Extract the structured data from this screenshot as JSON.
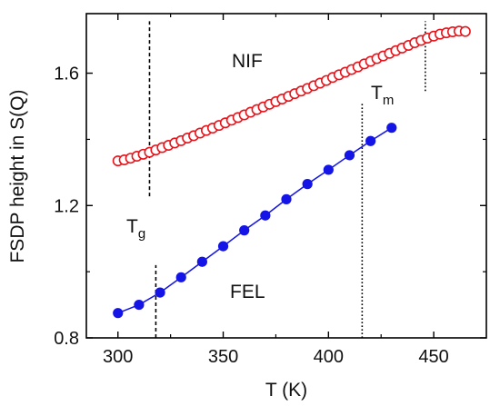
{
  "chart_data": {
    "type": "scatter",
    "xlabel": "T (K)",
    "ylabel": "FSDP height in S(Q)",
    "xlim": [
      285,
      475
    ],
    "ylim": [
      0.8,
      1.78
    ],
    "xticks": [
      300,
      350,
      400,
      450
    ],
    "yticks": [
      0.8,
      1.2,
      1.6
    ],
    "xtick_labels": [
      "300",
      "350",
      "400",
      "450"
    ],
    "ytick_labels": [
      "0.8",
      "1.2",
      "1.6"
    ],
    "grid": false,
    "series": [
      {
        "name": "NIF",
        "marker": "open-circle",
        "color": "#e8141b",
        "x": [
          300,
          303,
          306,
          309,
          312,
          315,
          318,
          321,
          324,
          327,
          330,
          333,
          336,
          339,
          342,
          345,
          348,
          351,
          354,
          357,
          360,
          363,
          366,
          369,
          372,
          375,
          378,
          381,
          384,
          387,
          390,
          393,
          396,
          399,
          402,
          405,
          408,
          411,
          414,
          417,
          420,
          423,
          426,
          429,
          432,
          435,
          438,
          441,
          444,
          447,
          450,
          453,
          456,
          459,
          462,
          465
        ],
        "y": [
          1.335,
          1.338,
          1.343,
          1.349,
          1.355,
          1.361,
          1.368,
          1.375,
          1.382,
          1.389,
          1.396,
          1.404,
          1.411,
          1.419,
          1.427,
          1.434,
          1.442,
          1.45,
          1.458,
          1.466,
          1.474,
          1.482,
          1.49,
          1.498,
          1.506,
          1.514,
          1.522,
          1.53,
          1.538,
          1.546,
          1.554,
          1.562,
          1.57,
          1.578,
          1.587,
          1.595,
          1.603,
          1.611,
          1.619,
          1.628,
          1.636,
          1.644,
          1.652,
          1.66,
          1.668,
          1.676,
          1.684,
          1.692,
          1.699,
          1.706,
          1.712,
          1.718,
          1.722,
          1.725,
          1.727,
          1.726
        ]
      },
      {
        "name": "FEL",
        "marker": "filled-circle",
        "color": "#1414e6",
        "connected": true,
        "x": [
          300,
          310,
          320,
          330,
          340,
          350,
          360,
          370,
          380,
          390,
          400,
          410,
          420,
          430
        ],
        "y": [
          0.875,
          0.9,
          0.937,
          0.983,
          1.03,
          1.077,
          1.125,
          1.17,
          1.219,
          1.265,
          1.308,
          1.352,
          1.395,
          1.435
        ]
      }
    ],
    "annotations": {
      "nif_label": "NIF",
      "fel_label": "FEL",
      "tg_main": "T",
      "tg_sub": "g",
      "tm_main": "T",
      "tm_sub": "m"
    },
    "reference_lines": [
      {
        "x": 315,
        "y_range": [
          1.228,
          1.757
        ],
        "style": "dashed"
      },
      {
        "x": 318,
        "y_range": [
          0.8,
          1.02
        ],
        "style": "dashed"
      },
      {
        "x": 446,
        "y_range": [
          1.546,
          1.757
        ],
        "style": "dotted"
      },
      {
        "x": 416,
        "y_range": [
          0.8,
          1.51
        ],
        "style": "dotted"
      }
    ]
  }
}
